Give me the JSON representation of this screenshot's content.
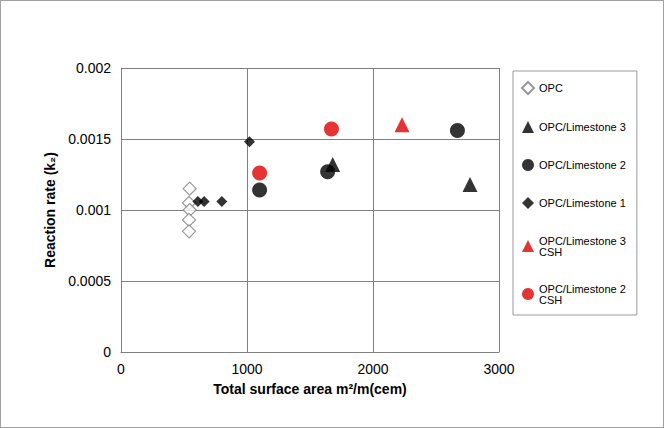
{
  "chart_data": {
    "type": "scatter",
    "x_label": "Total surface area m²/m(cem)",
    "y_label": "Reaction rate (k₂)",
    "xlim": [
      0,
      3000
    ],
    "xticks": [
      0,
      1000,
      2000,
      3000
    ],
    "ylim": [
      0,
      0.002
    ],
    "yticks": [
      0,
      0.0005,
      0.001,
      0.0015,
      0.002
    ],
    "grid": true,
    "legend": "right",
    "series": [
      {
        "name": "OPC",
        "color": "#808080",
        "marker": "diamond-open",
        "x": [
          545,
          540,
          545,
          540,
          540
        ],
        "values": [
          0.00115,
          0.00105,
          0.001,
          0.00093,
          0.00085
        ]
      },
      {
        "name": "OPC/Limestone 3",
        "color": "#000000",
        "marker": "triangle",
        "x": [
          1680,
          2770
        ],
        "values": [
          0.00132,
          0.00118
        ]
      },
      {
        "name": "OPC/Limestone 2",
        "color": "#000000",
        "marker": "circle",
        "x": [
          1100,
          1640,
          2670
        ],
        "values": [
          0.00114,
          0.00127,
          0.00156
        ]
      },
      {
        "name": "OPC/Limestone 1",
        "color": "#000000",
        "marker": "diamond",
        "x": [
          1020,
          610,
          660,
          800
        ],
        "values": [
          0.00148,
          0.00106,
          0.00106,
          0.00106
        ]
      },
      {
        "name": "OPC/Limestone 3 CSH",
        "color": "#e00000",
        "marker": "triangle",
        "x": [
          2230
        ],
        "values": [
          0.0016
        ]
      },
      {
        "name": "OPC/Limestone 2 CSH",
        "color": "#e00000",
        "marker": "circle",
        "x": [
          1100,
          1670
        ],
        "values": [
          0.00126,
          0.00157
        ]
      }
    ]
  }
}
